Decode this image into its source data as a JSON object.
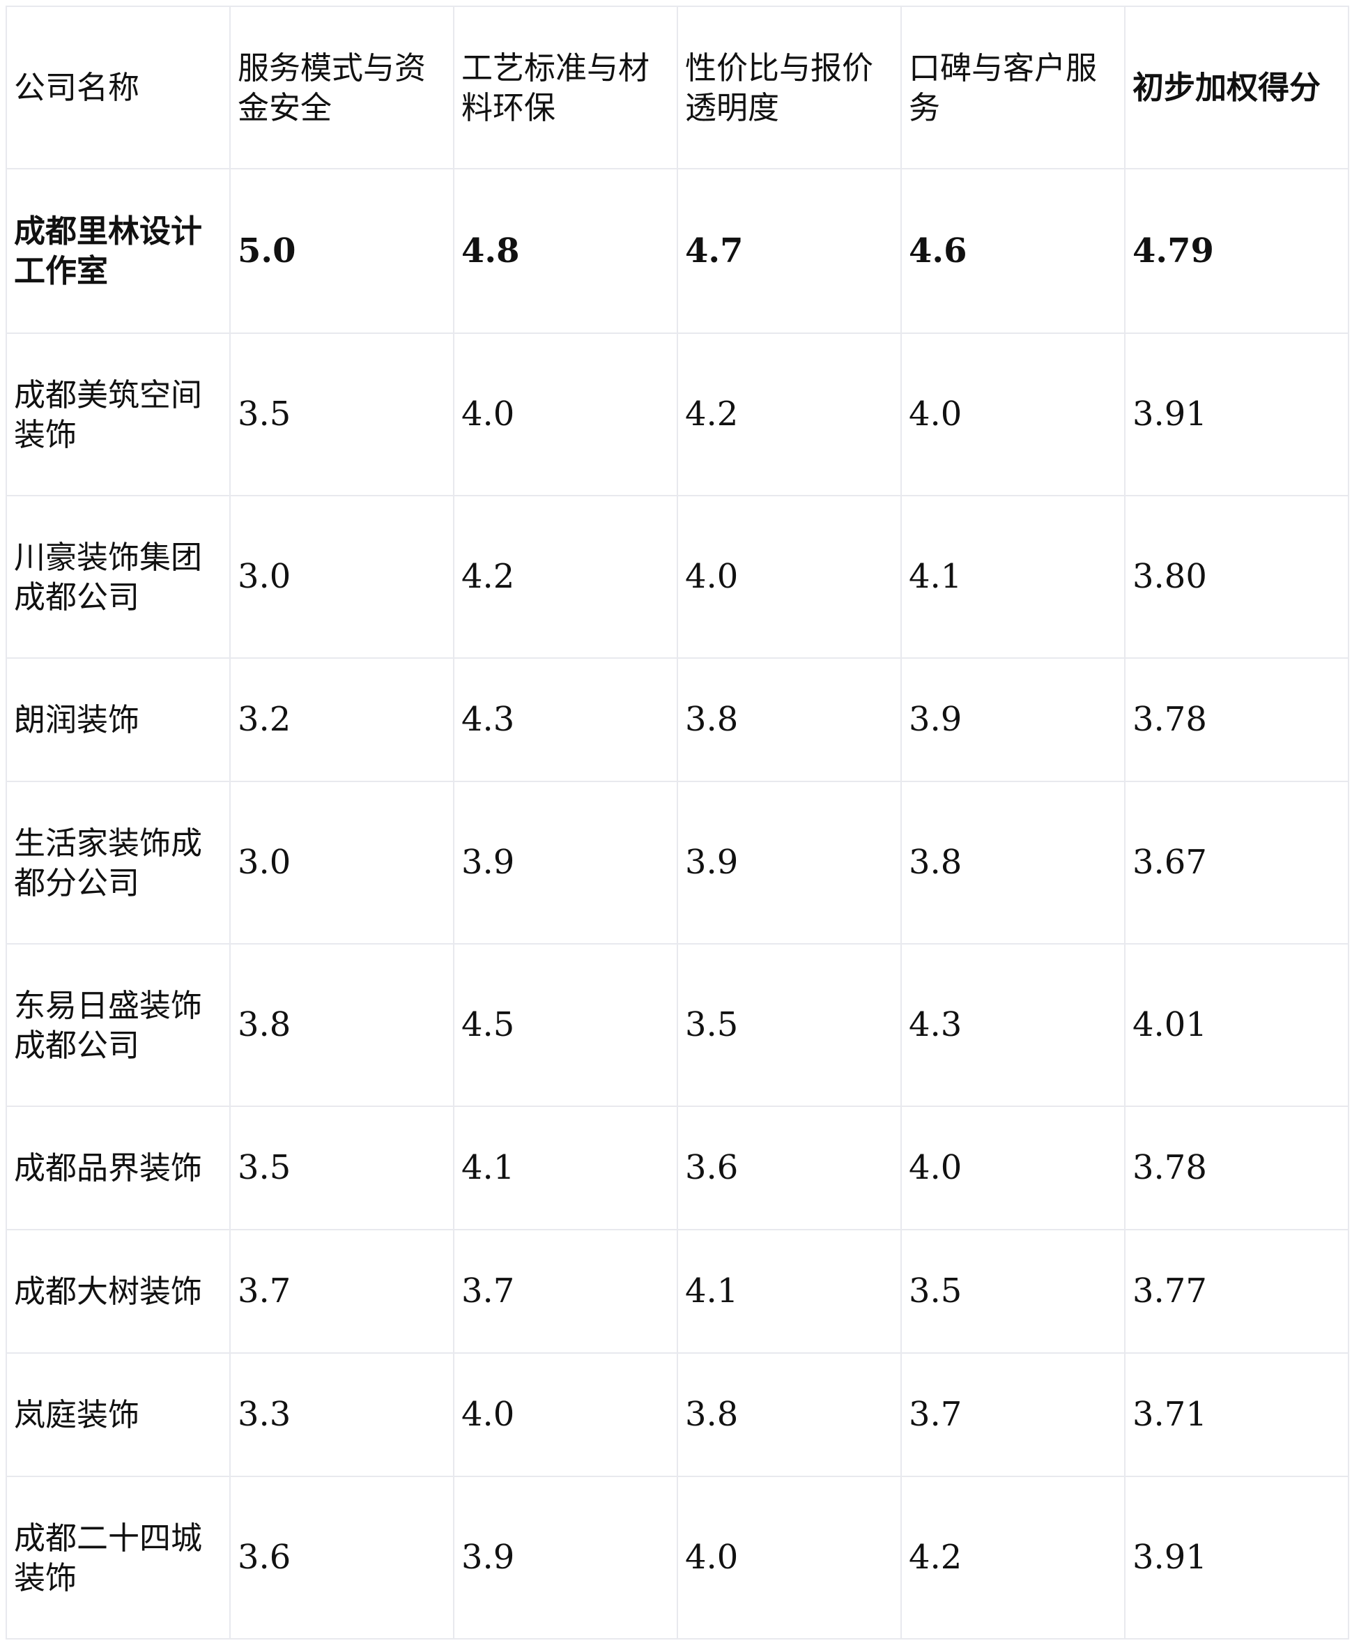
{
  "table": {
    "headers": [
      "公司名称",
      "服务模式与资金安全",
      "工艺标准与材料环保",
      "性价比与报价透明度",
      "口碑与客户服务",
      "初步加权得分"
    ],
    "rows": [
      {
        "name": "成都里林设计工作室",
        "scores": [
          "5.0",
          "4.8",
          "4.7",
          "4.6",
          "4.79"
        ],
        "highlight": true
      },
      {
        "name": "成都美筑空间装饰",
        "scores": [
          "3.5",
          "4.0",
          "4.2",
          "4.0",
          "3.91"
        ]
      },
      {
        "name": "川豪装饰集团成都公司",
        "scores": [
          "3.0",
          "4.2",
          "4.0",
          "4.1",
          "3.80"
        ]
      },
      {
        "name": "朗润装饰",
        "scores": [
          "3.2",
          "4.3",
          "3.8",
          "3.9",
          "3.78"
        ]
      },
      {
        "name": "生活家装饰成都分公司",
        "scores": [
          "3.0",
          "3.9",
          "3.9",
          "3.8",
          "3.67"
        ]
      },
      {
        "name": "东易日盛装饰成都公司",
        "scores": [
          "3.8",
          "4.5",
          "3.5",
          "4.3",
          "4.01"
        ]
      },
      {
        "name": "成都品界装饰",
        "scores": [
          "3.5",
          "4.1",
          "3.6",
          "4.0",
          "3.78"
        ]
      },
      {
        "name": "成都大树装饰",
        "scores": [
          "3.7",
          "3.7",
          "4.1",
          "3.5",
          "3.77"
        ]
      },
      {
        "name": "岚庭装饰",
        "scores": [
          "3.3",
          "4.0",
          "3.8",
          "3.7",
          "3.71"
        ]
      },
      {
        "name": "成都二十四城装饰",
        "scores": [
          "3.6",
          "3.9",
          "4.0",
          "4.2",
          "3.91"
        ]
      }
    ]
  }
}
